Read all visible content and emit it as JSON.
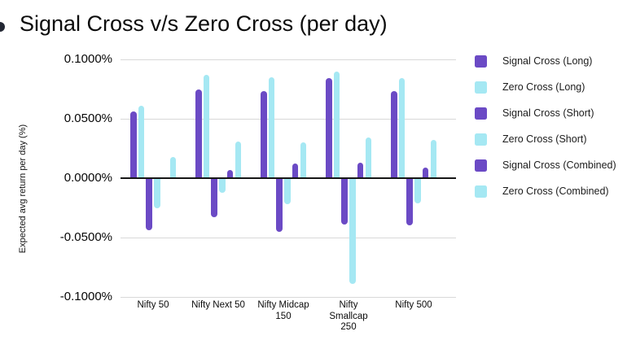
{
  "title": "Signal Cross v/s Zero Cross (per day)",
  "colors": {
    "signal_purple": "#6b4ac5",
    "zero_cyan": "#a5e8f3",
    "gridline": "#d8d8d8",
    "zero_axis_line": "#161616"
  },
  "y_axis": {
    "title": "Expected avg return per day (%)",
    "ticks": [
      {
        "label": "0.1000%",
        "value": 0.1
      },
      {
        "label": "0.0500%",
        "value": 0.05
      },
      {
        "label": "0.0000%",
        "value": 0.0
      },
      {
        "label": "-0.0500%",
        "value": -0.05
      },
      {
        "label": "-0.1000%",
        "value": -0.1
      }
    ]
  },
  "x_axis": {
    "labels": [
      [
        "Nifty 50"
      ],
      [
        "Nifty Next 50"
      ],
      [
        "Nifty Midcap",
        "150"
      ],
      [
        "Nifty",
        "Smallcap",
        "250"
      ],
      [
        "Nifty 500"
      ]
    ]
  },
  "legend": [
    {
      "label": "Signal Cross (Long)",
      "color": "#6b4ac5"
    },
    {
      "label": "Zero Cross (Long)",
      "color": "#a5e8f3"
    },
    {
      "label": "Signal Cross (Short)",
      "color": "#6b4ac5"
    },
    {
      "label": "Zero Cross (Short)",
      "color": "#a5e8f3"
    },
    {
      "label": "Signal Cross (Combined)",
      "color": "#6b4ac5"
    },
    {
      "label": "Zero Cross (Combined)",
      "color": "#a5e8f3"
    }
  ],
  "chart_data": {
    "type": "bar",
    "title": "Signal Cross v/s Zero Cross (per day)",
    "xlabel": "",
    "ylabel": "Expected avg return per day (%)",
    "ylim": [
      -0.1,
      0.1
    ],
    "units": "percent per day",
    "grid": true,
    "legend_position": "right",
    "categories": [
      "Nifty 50",
      "Nifty Next 50",
      "Nifty Midcap 150",
      "Nifty Smallcap 250",
      "Nifty 500"
    ],
    "series": [
      {
        "name": "Signal Cross (Long)",
        "color": "#6b4ac5",
        "values": [
          0.056,
          0.075,
          0.073,
          0.084,
          0.073
        ]
      },
      {
        "name": "Zero Cross (Long)",
        "color": "#a5e8f3",
        "values": [
          0.061,
          0.087,
          0.085,
          0.09,
          0.084
        ]
      },
      {
        "name": "Signal Cross (Short)",
        "color": "#6b4ac5",
        "values": [
          -0.044,
          -0.033,
          -0.045,
          -0.039,
          -0.04
        ]
      },
      {
        "name": "Zero Cross (Short)",
        "color": "#a5e8f3",
        "values": [
          -0.025,
          -0.012,
          -0.022,
          -0.089,
          -0.021
        ]
      },
      {
        "name": "Signal Cross (Combined)",
        "color": "#6b4ac5",
        "values": [
          0.0,
          0.007,
          0.012,
          0.013,
          0.009
        ]
      },
      {
        "name": "Zero Cross (Combined)",
        "color": "#a5e8f3",
        "values": [
          0.018,
          0.031,
          0.03,
          0.034,
          0.032
        ]
      }
    ]
  }
}
